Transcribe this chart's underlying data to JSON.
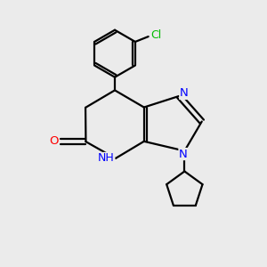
{
  "bg_color": "#ebebeb",
  "bond_color": "#000000",
  "bond_width": 1.6,
  "atom_colors": {
    "N": "#0000ff",
    "O": "#ff0000",
    "Cl": "#00bb00",
    "C": "#000000"
  },
  "font_size": 9.5
}
